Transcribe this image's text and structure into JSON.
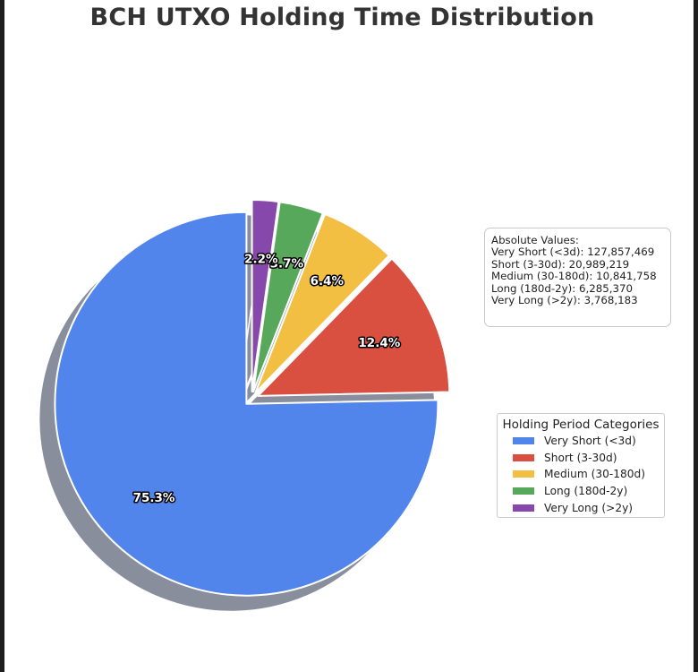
{
  "chart_data": {
    "type": "pie",
    "title": "BCH UTXO Holding Time Distribution",
    "categories": [
      "Very Short (<3d)",
      "Short (3-30d)",
      "Medium (30-180d)",
      "Long (180d-2y)",
      "Very Long (>2y)"
    ],
    "values": [
      127857469,
      20989219,
      10841758,
      6285370,
      3768183
    ],
    "percent_labels": [
      "75.3%",
      "12.4%",
      "6.4%",
      "3.7%",
      "2.2%"
    ],
    "colors": [
      "#5185ec",
      "#d94f40",
      "#f2bf42",
      "#57a85b",
      "#8648ab"
    ],
    "exploded": true,
    "shadow": true,
    "start_angle_deg": 90,
    "direction": "counterclockwise",
    "legend": {
      "title": "Holding Period Categories",
      "placement": "right",
      "entries": [
        "Very Short (<3d)",
        "Short (3-30d)",
        "Medium (30-180d)",
        "Long (180d-2y)",
        "Very Long (>2y)"
      ]
    },
    "annotation": {
      "heading": "Absolute Values:",
      "lines": [
        "Very Short (<3d): 127,857,469",
        "Short (3-30d): 20,989,219",
        "Medium (30-180d): 10,841,758",
        "Long (180d-2y): 6,285,370",
        "Very Long (>2y): 3,768,183"
      ]
    }
  }
}
